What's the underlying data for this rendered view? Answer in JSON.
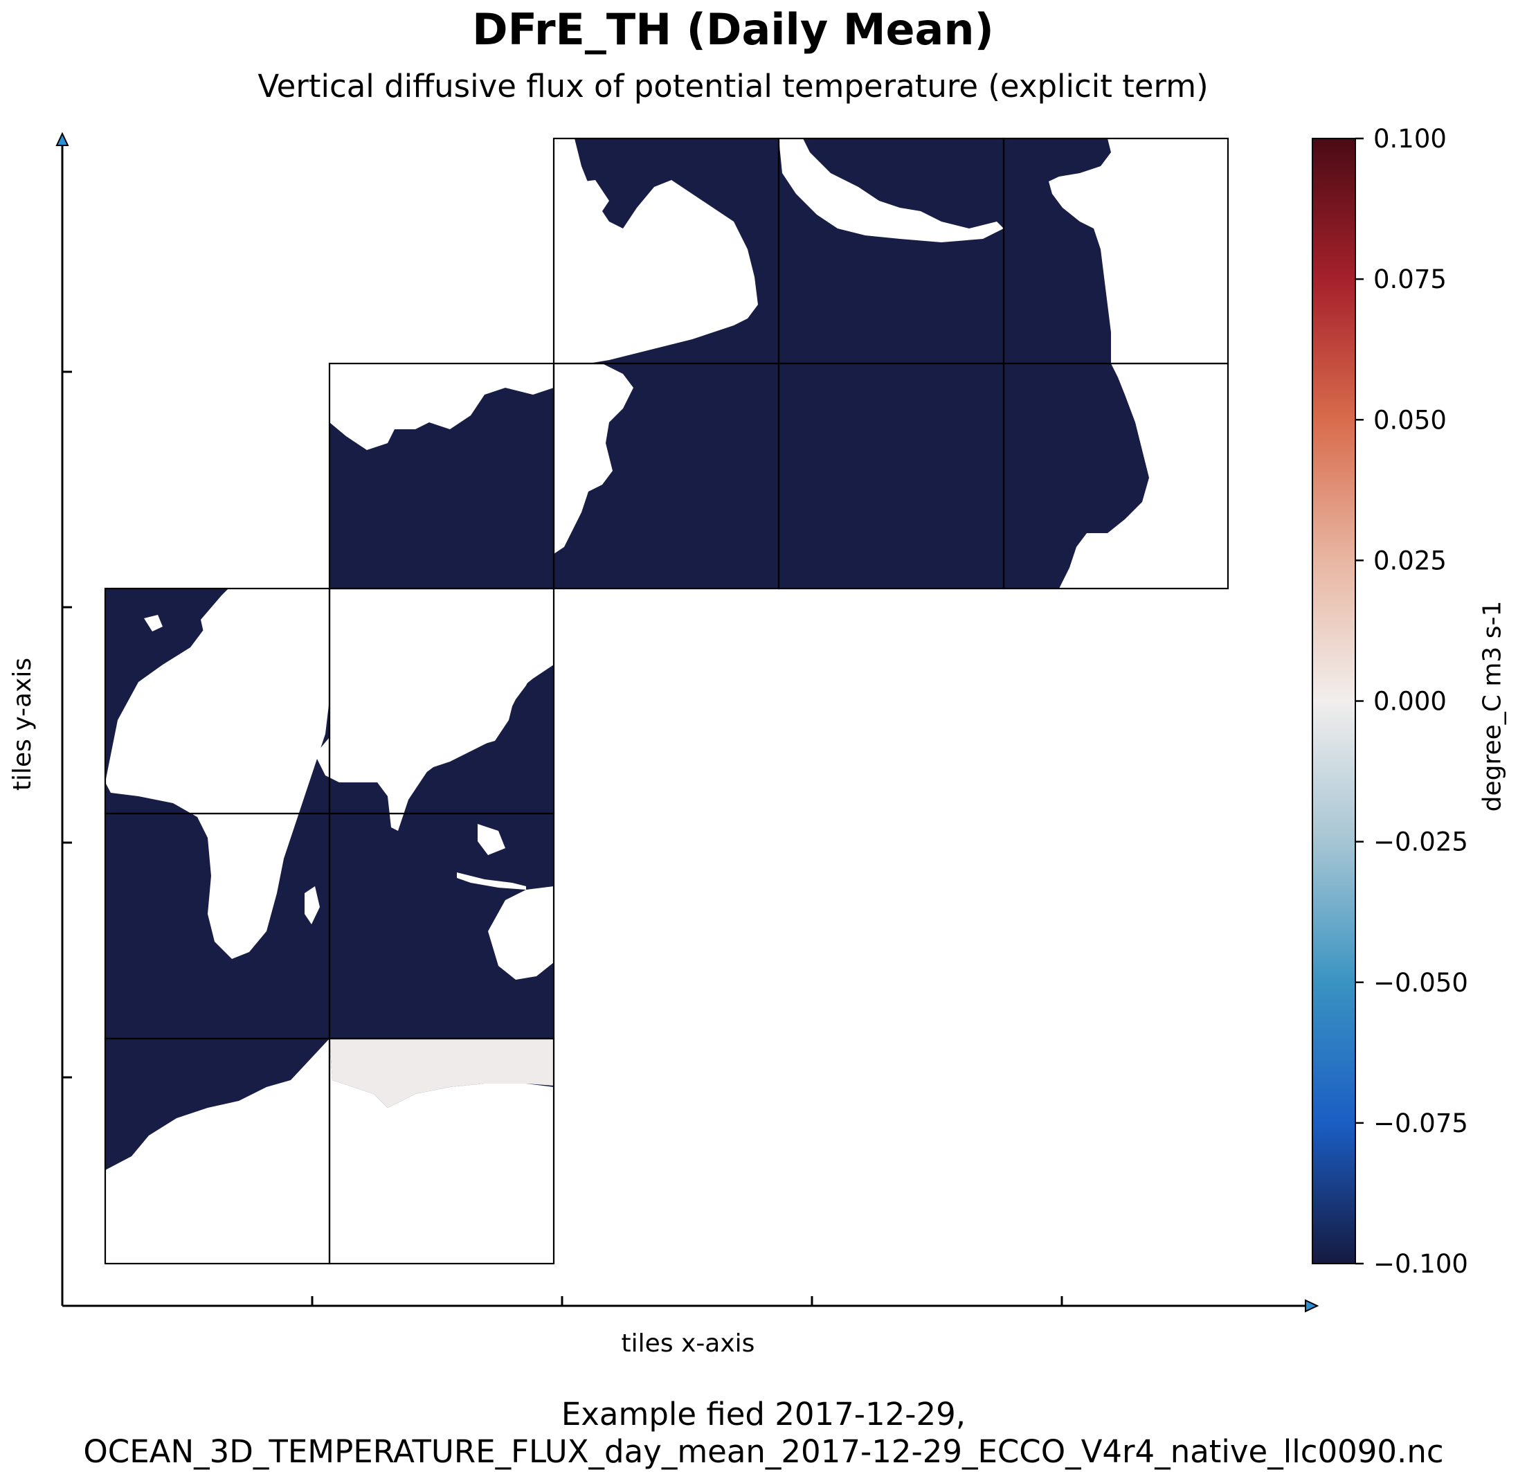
{
  "chart_data": {
    "type": "heatmap",
    "title": "DFrE_TH (Daily Mean)",
    "subtitle": "Vertical diffusive flux of potential temperature (explicit term)",
    "xlabel": "tiles x-axis",
    "ylabel": "tiles y-axis",
    "footer_line1": "Example fied 2017-12-29,",
    "footer_line2": "OCEAN_3D_TEMPERATURE_FLUX_day_mean_2017-12-29_ECCO_V4r4_native_llc0090.nc",
    "colorbar": {
      "label": "degree_C m3 s-1",
      "range": [
        -0.1,
        0.1
      ],
      "ticks": [
        "0.100",
        "0.075",
        "0.050",
        "0.025",
        "0.000",
        "−0.025",
        "−0.050",
        "−0.075",
        "−0.100"
      ],
      "colormap": "balance",
      "stops": [
        "#4a0b14",
        "#a6212c",
        "#d86b4c",
        "#e8b6a2",
        "#f1eeed",
        "#a6c5d3",
        "#3a93c2",
        "#1b5ec4",
        "#161a40"
      ]
    },
    "colors": {
      "ocean": "#171d44",
      "land": "#ffffff",
      "near_zero": "#efebea",
      "grid": "#000000"
    },
    "x_ticks_labeled": false,
    "y_ticks_labeled": false,
    "grid": true,
    "legend": "colorbar-right"
  }
}
